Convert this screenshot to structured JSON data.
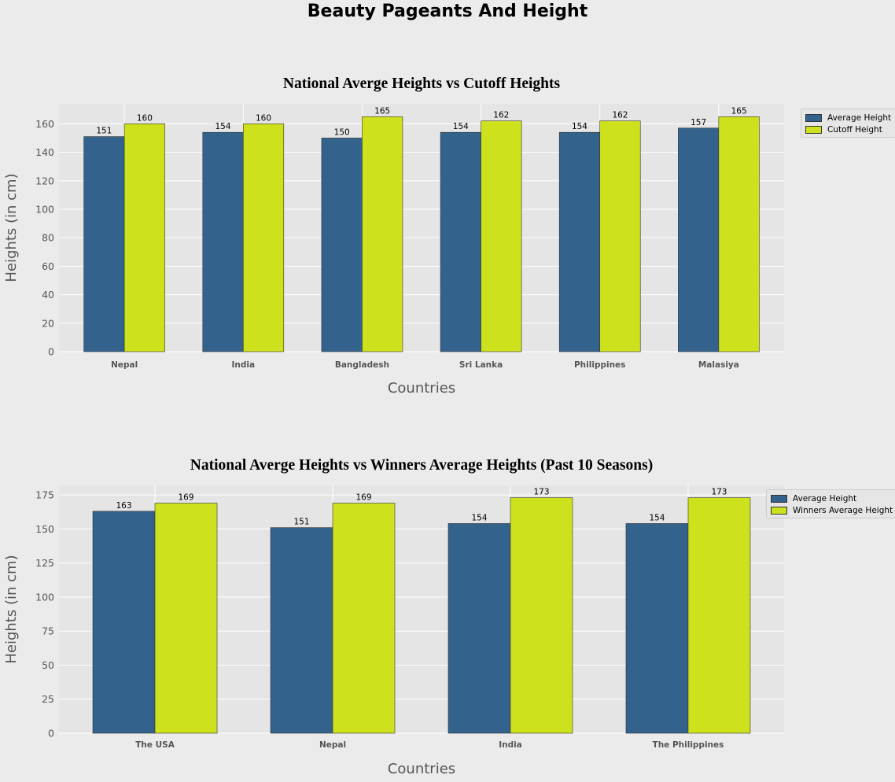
{
  "figure": {
    "title": "Beauty Pageants And Height",
    "colors": {
      "average": "#33638d",
      "cutoff": "#cde11d",
      "background": "#ebebeb",
      "axes_bg": "#e5e5e5",
      "grid": "#ffffff"
    }
  },
  "chart_data": [
    {
      "type": "bar",
      "title": "National Averge Heights vs Cutoff Heights",
      "xlabel": "Countries",
      "ylabel": "Heights (in cm)",
      "categories": [
        "Nepal",
        "India",
        "Bangladesh",
        "Sri Lanka",
        "Philippines",
        "Malasiya"
      ],
      "series": [
        {
          "name": "Average Height",
          "values": [
            151,
            154,
            150,
            154,
            154,
            157
          ],
          "color": "#33638d"
        },
        {
          "name": "Cutoff Height",
          "values": [
            160,
            160,
            165,
            162,
            162,
            165
          ],
          "color": "#cde11d"
        }
      ],
      "ylim": [
        0,
        174
      ],
      "yticks": [
        0,
        20,
        40,
        60,
        80,
        100,
        120,
        140,
        160
      ],
      "grid": true,
      "legend": "upper right outside"
    },
    {
      "type": "bar",
      "title": "National Averge Heights vs Winners Average Heights (Past 10 Seasons)",
      "xlabel": "Countries",
      "ylabel": "Heights (in cm)",
      "categories": [
        "The USA",
        "Nepal",
        "India",
        "The Philippines"
      ],
      "series": [
        {
          "name": "Average Height",
          "values": [
            163,
            151,
            154,
            154
          ],
          "color": "#33638d"
        },
        {
          "name": "Winners Average Height",
          "values": [
            169,
            169,
            173,
            173
          ],
          "color": "#cde11d"
        }
      ],
      "ylim": [
        0,
        182
      ],
      "yticks": [
        0,
        25,
        50,
        75,
        100,
        125,
        150,
        175
      ],
      "grid": true,
      "legend": "upper right outside"
    }
  ]
}
